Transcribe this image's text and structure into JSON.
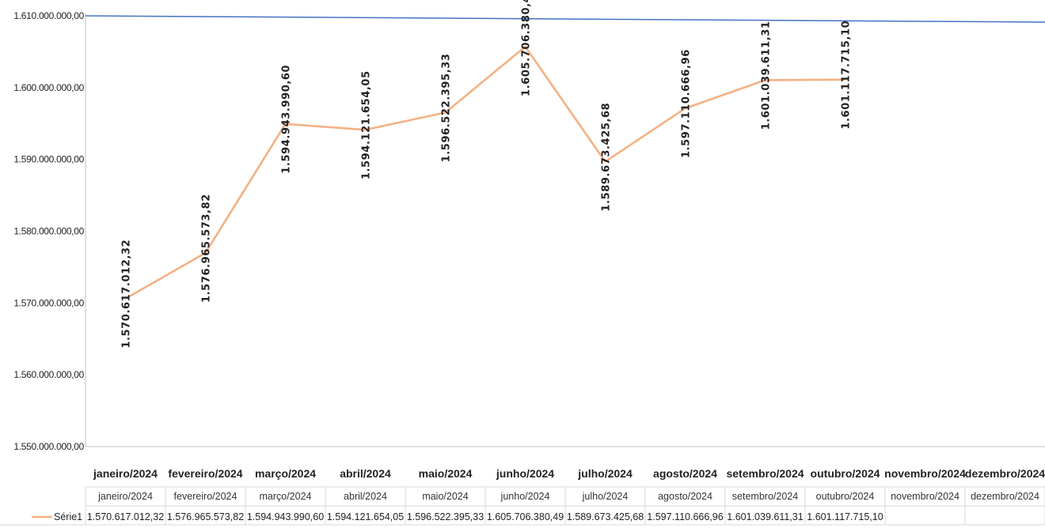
{
  "chart_data": {
    "type": "line",
    "categories": [
      "janeiro/2024",
      "fevereiro/2024",
      "março/2024",
      "abril/2024",
      "maio/2024",
      "junho/2024",
      "julho/2024",
      "agosto/2024",
      "setembro/2024",
      "outubro/2024",
      "novembro/2024",
      "dezembro/2024"
    ],
    "series": [
      {
        "name": "Série1",
        "values": [
          1570617012.32,
          1576965573.82,
          1594943990.6,
          1594121654.05,
          1596522395.33,
          1605706380.49,
          1589673425.68,
          1597110666.96,
          1601039611.31,
          1601117715.1,
          null,
          null
        ],
        "labels": [
          "1.570.617.012,32",
          "1.576.965.573,82",
          "1.594.943.990,60",
          "1.594.121.654,05",
          "1.596.522.395,33",
          "1.605.706.380,49",
          "1.589.673.425,68",
          "1.597.110.666,96",
          "1.601.039.611,31",
          "1.601.117.715,10",
          "",
          ""
        ],
        "color": "#f4b183"
      }
    ],
    "ylim": [
      1550000000,
      1610000000
    ],
    "yticks": [
      1550000000,
      1560000000,
      1570000000,
      1580000000,
      1590000000,
      1600000000,
      1610000000
    ],
    "ytick_labels": [
      "1.550.000.000,00",
      "1.560.000.000,00",
      "1.570.000.000,00",
      "1.580.000.000,00",
      "1.590.000.000,00",
      "1.600.000.000,00",
      "1.610.000.000,00"
    ],
    "grid": false,
    "data_table": true,
    "title": "",
    "xlabel": "",
    "ylabel": "",
    "top_line_color": "#4472c4"
  }
}
